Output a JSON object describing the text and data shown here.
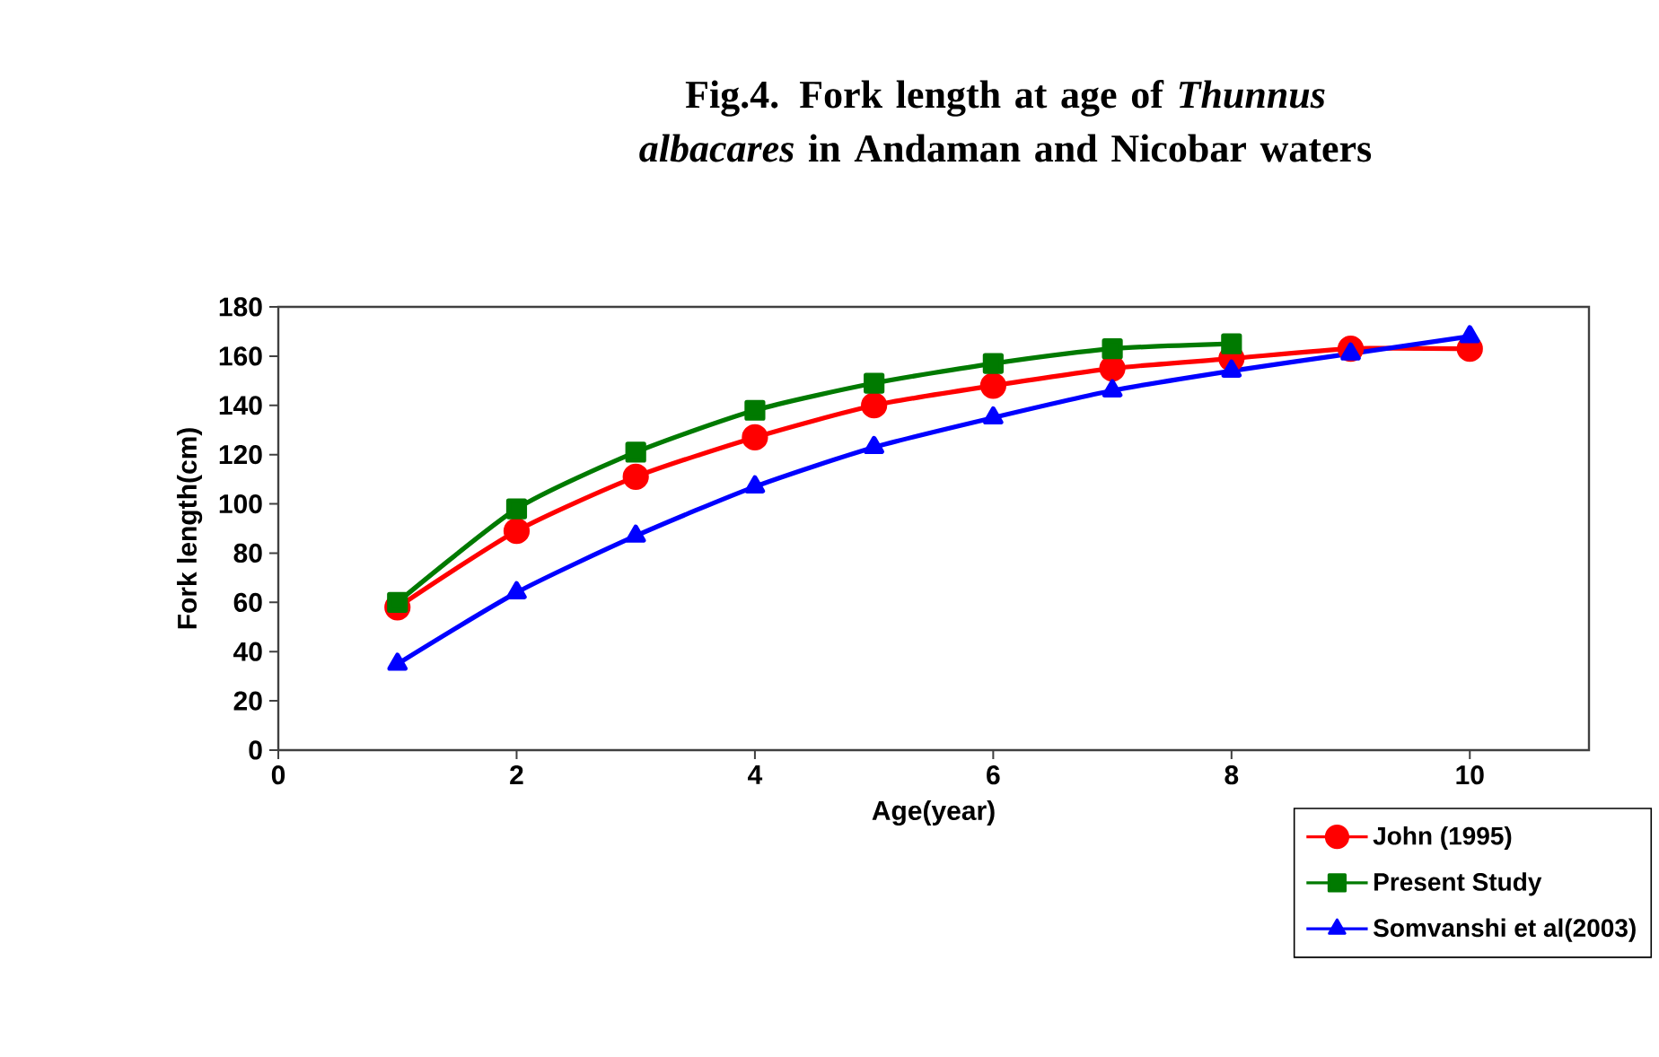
{
  "chart_data": {
    "type": "line",
    "title": "Fig.4. Fork length at age of *Thunnus albacares* in Andaman and Nicobar waters",
    "xlabel": "Age(year)",
    "ylabel": "Fork length(cm)",
    "xlim": [
      0,
      11
    ],
    "xticks": [
      0,
      2,
      4,
      6,
      8,
      10
    ],
    "ylim": [
      0,
      180
    ],
    "yticks": [
      0,
      20,
      40,
      60,
      80,
      100,
      120,
      140,
      160,
      180
    ],
    "x": [
      1,
      2,
      3,
      4,
      5,
      6,
      7,
      8,
      9,
      10
    ],
    "legend": "bottom right",
    "grid": false,
    "line_style": "solid",
    "series": [
      {
        "name": "John (1995)",
        "color": "#ff0000",
        "marker": "circle",
        "values": [
          58,
          89,
          111,
          127,
          140,
          148,
          155,
          159,
          163,
          163
        ]
      },
      {
        "name": "Present Study",
        "color": "#007a00",
        "marker": "square",
        "values": [
          60,
          98,
          121,
          138,
          149,
          157,
          163,
          165,
          null,
          null
        ]
      },
      {
        "name": "Somvanshi et al(2003)",
        "color": "#0000ff",
        "marker": "triangle",
        "values": [
          35,
          64,
          87,
          107,
          123,
          135,
          146,
          154,
          161,
          168
        ]
      }
    ]
  }
}
